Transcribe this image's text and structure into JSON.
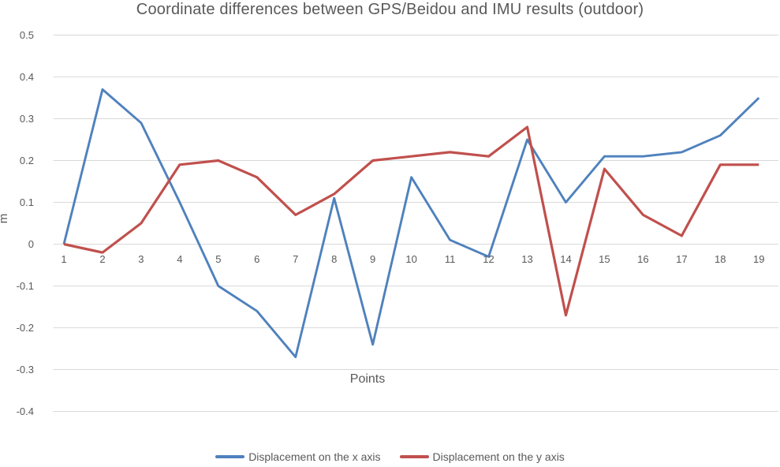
{
  "chart_data": {
    "type": "line",
    "title": "Coordinate differences between GPS/Beidou and IMU results (outdoor)",
    "xlabel": "Points",
    "ylabel": "m",
    "categories": [
      1,
      2,
      3,
      4,
      5,
      6,
      7,
      8,
      9,
      10,
      11,
      12,
      13,
      14,
      15,
      16,
      17,
      18,
      19
    ],
    "series": [
      {
        "name": "Displacement on the x axis",
        "color": "#4F81BD",
        "stroke_width": 2.9,
        "values": [
          0,
          0.37,
          0.29,
          0.1,
          -0.1,
          -0.16,
          -0.27,
          0.11,
          -0.24,
          0.16,
          0.01,
          -0.03,
          0.25,
          0.1,
          0.21,
          0.21,
          0.22,
          0.26,
          0.35
        ]
      },
      {
        "name": "Displacement on the y axis",
        "color": "#C0504D",
        "stroke_width": 3.2,
        "values": [
          0,
          -0.02,
          0.05,
          0.19,
          0.2,
          0.16,
          0.07,
          0.12,
          0.2,
          0.21,
          0.22,
          0.21,
          0.28,
          -0.17,
          0.18,
          0.07,
          0.02,
          0.19,
          0.19
        ]
      }
    ],
    "y_ticks": [
      0.5,
      0.4,
      0.3,
      0.2,
      0.1,
      0,
      -0.1,
      -0.2,
      -0.3,
      -0.4
    ],
    "ylim": [
      -0.4,
      0.5
    ],
    "grid": "horizontal",
    "gridline_color": "#D9D9D9",
    "text_color": "#595959",
    "legend_position": "bottom"
  }
}
